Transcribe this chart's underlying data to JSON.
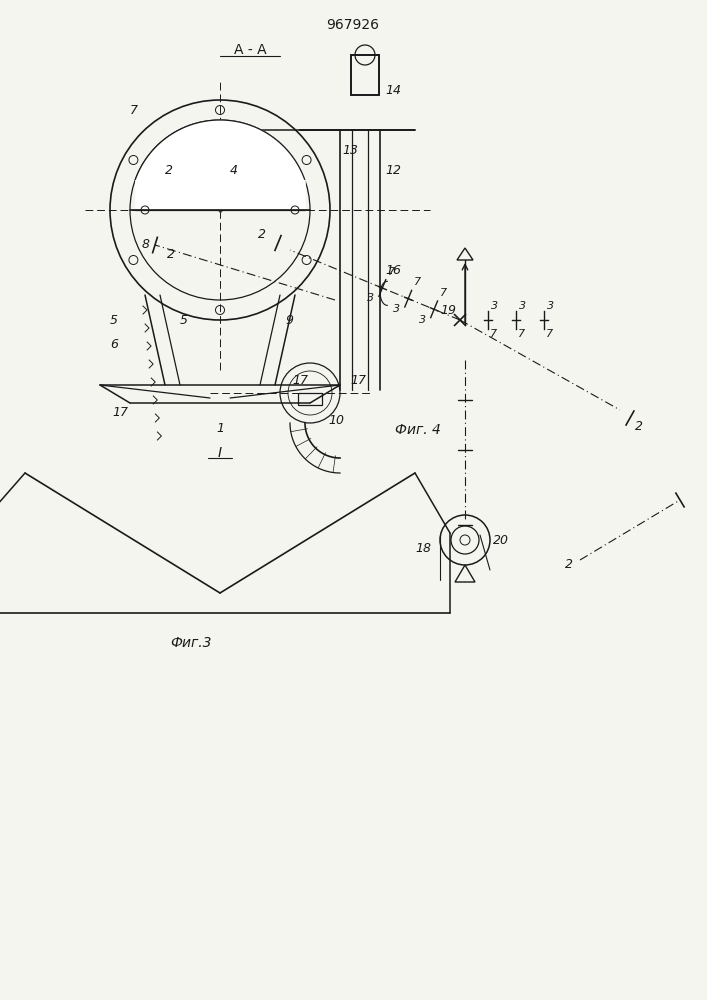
{
  "patent_number": "967926",
  "fig3_label": "Фиг.3",
  "fig4_label": "Фиг. 4",
  "section_label": "А - А",
  "bg_color": "#f5f5f0",
  "line_color": "#1a1a1a",
  "label_fontsize": 9,
  "title_fontsize": 10
}
